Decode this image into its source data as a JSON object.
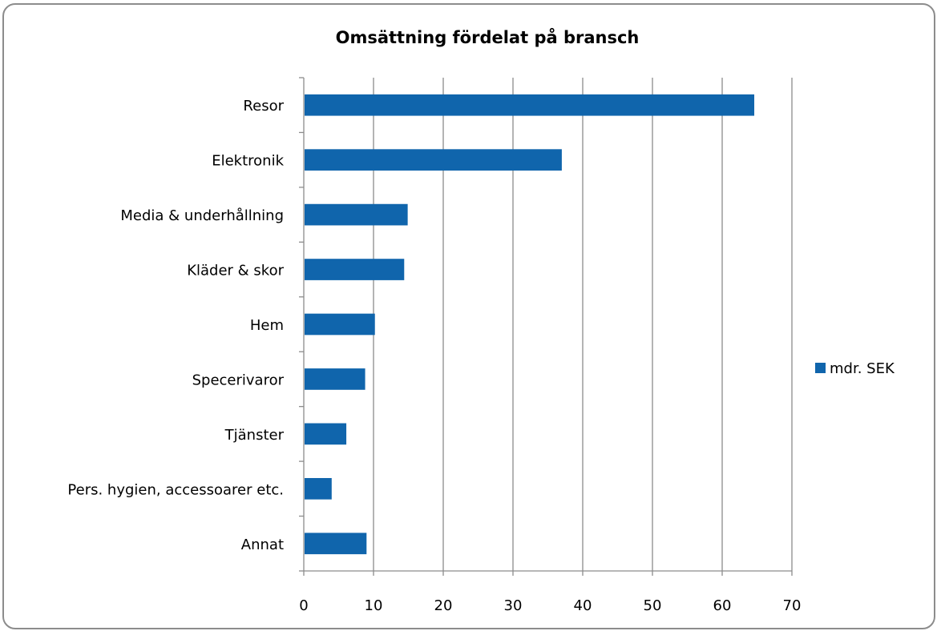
{
  "chart_data": {
    "type": "bar",
    "orientation": "horizontal",
    "title": "Omsättning fördelat på bransch",
    "xlabel": "",
    "ylabel": "",
    "categories": [
      "Resor",
      "Elektronik",
      "Media & underhållning",
      "Kläder & skor",
      "Hem",
      "Specerivaror",
      "Tjänster",
      "Pers. hygien, accessoarer etc.",
      "Annat"
    ],
    "series": [
      {
        "name": "mdr. SEK",
        "values": [
          64.6,
          37.0,
          14.9,
          14.4,
          10.2,
          8.8,
          6.1,
          4.0,
          9.0
        ]
      }
    ],
    "xlim": [
      0,
      70
    ],
    "xticks": [
      "0",
      "10",
      "20",
      "30",
      "40",
      "50",
      "60",
      "70"
    ],
    "grid": "vertical",
    "legend": "right",
    "colors": {
      "bar": "#1065AC",
      "grid": "#8c8c8c",
      "frame": "#8c8c8c"
    }
  }
}
